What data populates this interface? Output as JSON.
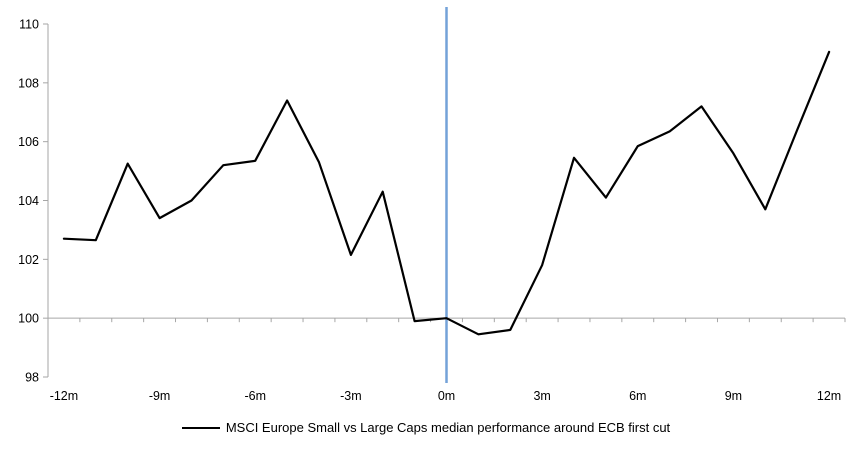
{
  "chart_data": {
    "type": "line",
    "title": "",
    "xlabel": "",
    "ylabel": "",
    "x": [
      -12,
      -11,
      -10,
      -9,
      -8,
      -7,
      -6,
      -5,
      -4,
      -3,
      -2,
      -1,
      0,
      1,
      2,
      3,
      4,
      5,
      6,
      7,
      8,
      9,
      10,
      11,
      12
    ],
    "series": [
      {
        "name": "MSCI Europe Small vs Large Caps median performance around ECB first cut",
        "color": "#000000",
        "values": [
          102.7,
          102.65,
          105.25,
          103.4,
          104.0,
          105.2,
          105.35,
          107.4,
          105.3,
          102.15,
          104.3,
          99.9,
          100.0,
          99.45,
          99.6,
          101.8,
          105.45,
          104.1,
          105.85,
          106.35,
          107.2,
          105.6,
          103.7,
          106.4,
          109.05
        ]
      }
    ],
    "ylim": [
      98,
      110
    ],
    "y_ticks": [
      98,
      100,
      102,
      104,
      106,
      108,
      110
    ],
    "x_ticks": [
      {
        "month": -12,
        "label": "-12m"
      },
      {
        "month": -9,
        "label": "-9m"
      },
      {
        "month": -6,
        "label": "-6m"
      },
      {
        "month": -3,
        "label": "-3m"
      },
      {
        "month": 0,
        "label": "0m"
      },
      {
        "month": 3,
        "label": "3m"
      },
      {
        "month": 6,
        "label": "6m"
      },
      {
        "month": 9,
        "label": "9m"
      },
      {
        "month": 12,
        "label": "12m"
      }
    ],
    "baseline": 100,
    "event_line": {
      "x": 0,
      "color": "#74a2d8"
    },
    "axis_color": "#a6a6a6",
    "grid": false,
    "legend_position": "bottom"
  }
}
